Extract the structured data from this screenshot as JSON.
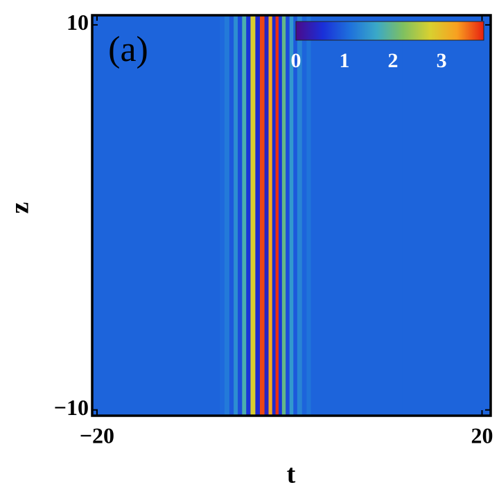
{
  "chart_data": {
    "type": "heatmap",
    "panel_label": "(a)",
    "xlabel": "t",
    "ylabel": "z",
    "x": [
      -20.5,
      -7.5,
      -7.0,
      -6.5,
      -6.0,
      -5.6,
      -5.15,
      -4.7,
      -4.3,
      -3.8,
      -3.3,
      -2.85,
      -2.35,
      -2.0,
      -1.6,
      -1.3,
      -0.97,
      -0.6,
      -0.2,
      0.2,
      0.6,
      1.0,
      1.6,
      1.95,
      2.5,
      21
    ],
    "values": [
      1,
      1,
      1.05,
      1.2,
      0.9,
      1.4,
      0.8,
      1.8,
      0.6,
      2.8,
      0.5,
      3.7,
      0.4,
      3.2,
      0.5,
      3.8,
      0.6,
      2.0,
      0.8,
      1.5,
      0.9,
      1.3,
      1.0,
      1.15,
      1,
      1
    ],
    "xlim": [
      -20.5,
      20.9
    ],
    "ylim": [
      -10.3,
      10.5
    ],
    "xticks": [
      {
        "value": -20,
        "label": "−20"
      },
      20
    ],
    "yticks": [
      {
        "value": -10,
        "label": "−10"
      },
      10
    ],
    "zlim": [
      0,
      3.87
    ],
    "zticks": [
      0,
      1,
      2,
      3
    ],
    "colormap": [
      "#4b0a8a",
      "#1a2fd8",
      "#1e70dc",
      "#3aa8c8",
      "#7fc060",
      "#d8d030",
      "#f8a020",
      "#e82010"
    ]
  }
}
